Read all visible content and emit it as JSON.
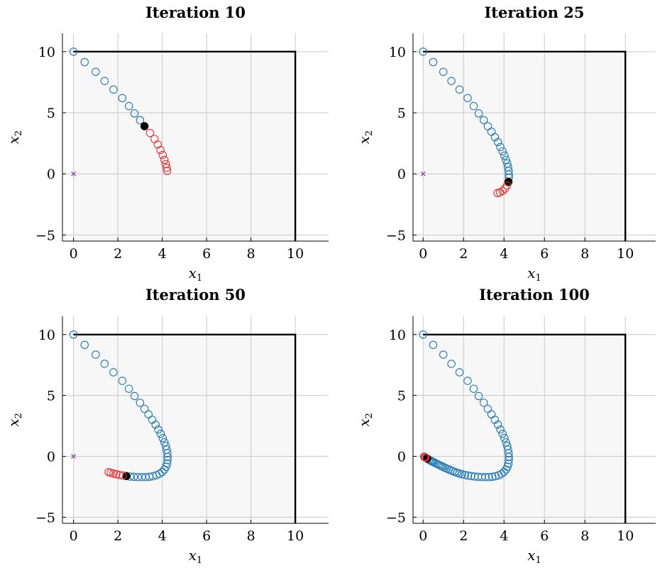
{
  "chart_data": [
    {
      "type": "scatter",
      "title": "Iteration 10",
      "xlabel": "x",
      "xlabel_sub": "1",
      "ylabel": "x",
      "ylabel_sub": "2",
      "xlim": [
        -0.5,
        11.5
      ],
      "ylim": [
        -5.5,
        11.5
      ],
      "xticks": [
        0,
        2,
        4,
        6,
        8,
        10
      ],
      "yticks": [
        -5,
        0,
        5,
        10
      ],
      "xtick_labels": [
        "0",
        "2",
        "4",
        "6",
        "8",
        "10"
      ],
      "ytick_labels": [
        "−5",
        "0",
        "5",
        "10"
      ],
      "grid": true,
      "box": {
        "x": [
          0,
          10
        ],
        "y": [
          -5.5,
          10
        ]
      },
      "origin_marker": [
        0,
        0
      ],
      "series": [
        {
          "role": "past",
          "color": "#1f77b4",
          "marker": "open-circle",
          "points": [
            [
              0,
              10
            ],
            [
              0.5,
              9.15
            ],
            [
              1,
              8.35
            ],
            [
              1.4,
              7.6
            ],
            [
              1.8,
              6.9
            ],
            [
              2.2,
              6.2
            ],
            [
              2.5,
              5.55
            ],
            [
              2.75,
              4.95
            ],
            [
              3,
              4.4
            ]
          ]
        },
        {
          "role": "current",
          "color": "#000000",
          "marker": "filled-circle",
          "points": [
            [
              3.2,
              3.9
            ]
          ]
        },
        {
          "role": "predicted",
          "color": "#e8302f",
          "marker": "open-circle",
          "points": [
            [
              3.45,
              3.35
            ],
            [
              3.65,
              2.85
            ],
            [
              3.8,
              2.4
            ],
            [
              3.92,
              1.95
            ],
            [
              4.02,
              1.55
            ],
            [
              4.1,
              1.15
            ],
            [
              4.16,
              0.8
            ],
            [
              4.2,
              0.5
            ],
            [
              4.22,
              0.25
            ]
          ]
        }
      ]
    },
    {
      "type": "scatter",
      "title": "Iteration 25",
      "xlabel": "x",
      "xlabel_sub": "1",
      "ylabel": "x",
      "ylabel_sub": "2",
      "xlim": [
        -0.5,
        11.5
      ],
      "ylim": [
        -5.5,
        11.5
      ],
      "xticks": [
        0,
        2,
        4,
        6,
        8,
        10
      ],
      "yticks": [
        -5,
        0,
        5,
        10
      ],
      "xtick_labels": [
        "0",
        "2",
        "4",
        "6",
        "8",
        "10"
      ],
      "ytick_labels": [
        "−5",
        "0",
        "5",
        "10"
      ],
      "grid": true,
      "box": {
        "x": [
          0,
          10
        ],
        "y": [
          -5.5,
          10
        ]
      },
      "origin_marker": [
        0,
        0
      ],
      "series": [
        {
          "role": "past",
          "color": "#1f77b4",
          "marker": "open-circle",
          "points": [
            [
              0,
              10
            ],
            [
              0.5,
              9.15
            ],
            [
              1,
              8.35
            ],
            [
              1.4,
              7.6
            ],
            [
              1.8,
              6.9
            ],
            [
              2.2,
              6.2
            ],
            [
              2.5,
              5.55
            ],
            [
              2.75,
              4.95
            ],
            [
              3,
              4.4
            ],
            [
              3.2,
              3.9
            ],
            [
              3.38,
              3.45
            ],
            [
              3.55,
              3.0
            ],
            [
              3.7,
              2.6
            ],
            [
              3.82,
              2.2
            ],
            [
              3.93,
              1.85
            ],
            [
              4.02,
              1.5
            ],
            [
              4.1,
              1.15
            ],
            [
              4.16,
              0.85
            ],
            [
              4.2,
              0.55
            ],
            [
              4.23,
              0.25
            ],
            [
              4.24,
              -0.05
            ],
            [
              4.24,
              -0.3
            ]
          ]
        },
        {
          "role": "current",
          "color": "#000000",
          "marker": "filled-circle",
          "points": [
            [
              4.22,
              -0.65
            ]
          ]
        },
        {
          "role": "predicted",
          "color": "#e8302f",
          "marker": "open-circle",
          "points": [
            [
              4.15,
              -0.95
            ],
            [
              4.05,
              -1.2
            ],
            [
              3.93,
              -1.4
            ],
            [
              3.8,
              -1.52
            ],
            [
              3.68,
              -1.57
            ]
          ]
        }
      ]
    },
    {
      "type": "scatter",
      "title": "Iteration 50",
      "xlabel": "x",
      "xlabel_sub": "1",
      "ylabel": "x",
      "ylabel_sub": "2",
      "xlim": [
        -0.5,
        11.5
      ],
      "ylim": [
        -5.5,
        11.5
      ],
      "xticks": [
        0,
        2,
        4,
        6,
        8,
        10
      ],
      "yticks": [
        -5,
        0,
        5,
        10
      ],
      "xtick_labels": [
        "0",
        "2",
        "4",
        "6",
        "8",
        "10"
      ],
      "ytick_labels": [
        "−5",
        "0",
        "5",
        "10"
      ],
      "grid": true,
      "box": {
        "x": [
          0,
          10
        ],
        "y": [
          -5.5,
          10
        ]
      },
      "origin_marker": [
        0,
        0
      ],
      "series": [
        {
          "role": "past",
          "color": "#1f77b4",
          "marker": "open-circle",
          "points": [
            [
              0,
              10
            ],
            [
              0.5,
              9.15
            ],
            [
              1,
              8.35
            ],
            [
              1.4,
              7.6
            ],
            [
              1.8,
              6.9
            ],
            [
              2.2,
              6.2
            ],
            [
              2.5,
              5.55
            ],
            [
              2.75,
              4.95
            ],
            [
              3,
              4.4
            ],
            [
              3.2,
              3.9
            ],
            [
              3.38,
              3.45
            ],
            [
              3.55,
              3.0
            ],
            [
              3.7,
              2.6
            ],
            [
              3.82,
              2.2
            ],
            [
              3.93,
              1.85
            ],
            [
              4.02,
              1.5
            ],
            [
              4.1,
              1.15
            ],
            [
              4.16,
              0.85
            ],
            [
              4.2,
              0.55
            ],
            [
              4.23,
              0.25
            ],
            [
              4.24,
              -0.05
            ],
            [
              4.24,
              -0.3
            ],
            [
              4.22,
              -0.6
            ],
            [
              4.17,
              -0.85
            ],
            [
              4.1,
              -1.08
            ],
            [
              4.0,
              -1.28
            ],
            [
              3.88,
              -1.43
            ],
            [
              3.74,
              -1.55
            ],
            [
              3.58,
              -1.63
            ],
            [
              3.42,
              -1.68
            ],
            [
              3.25,
              -1.7
            ],
            [
              3.08,
              -1.7
            ],
            [
              2.9,
              -1.7
            ],
            [
              2.72,
              -1.68
            ],
            [
              2.55,
              -1.66
            ]
          ]
        },
        {
          "role": "current",
          "color": "#000000",
          "marker": "filled-circle",
          "points": [
            [
              2.38,
              -1.62
            ]
          ]
        },
        {
          "role": "predicted",
          "color": "#e8302f",
          "marker": "open-circle",
          "points": [
            [
              2.22,
              -1.58
            ],
            [
              2.07,
              -1.53
            ],
            [
              1.93,
              -1.47
            ],
            [
              1.8,
              -1.41
            ],
            [
              1.68,
              -1.35
            ],
            [
              1.58,
              -1.3
            ]
          ]
        }
      ]
    },
    {
      "type": "scatter",
      "title": "Iteration 100",
      "xlabel": "x",
      "xlabel_sub": "1",
      "ylabel": "x",
      "ylabel_sub": "2",
      "xlim": [
        -0.5,
        11.5
      ],
      "ylim": [
        -5.5,
        11.5
      ],
      "xticks": [
        0,
        2,
        4,
        6,
        8,
        10
      ],
      "yticks": [
        -5,
        0,
        5,
        10
      ],
      "xtick_labels": [
        "0",
        "2",
        "4",
        "6",
        "8",
        "10"
      ],
      "ytick_labels": [
        "−5",
        "0",
        "5",
        "10"
      ],
      "grid": true,
      "box": {
        "x": [
          0,
          10
        ],
        "y": [
          -5.5,
          10
        ]
      },
      "origin_marker": [
        0,
        0
      ],
      "series": [
        {
          "role": "past",
          "color": "#1f77b4",
          "marker": "open-circle",
          "points": [
            [
              0,
              10
            ],
            [
              0.5,
              9.15
            ],
            [
              1,
              8.35
            ],
            [
              1.4,
              7.6
            ],
            [
              1.8,
              6.9
            ],
            [
              2.2,
              6.2
            ],
            [
              2.5,
              5.55
            ],
            [
              2.75,
              4.95
            ],
            [
              3,
              4.4
            ],
            [
              3.2,
              3.9
            ],
            [
              3.38,
              3.45
            ],
            [
              3.55,
              3.0
            ],
            [
              3.7,
              2.6
            ],
            [
              3.82,
              2.2
            ],
            [
              3.93,
              1.85
            ],
            [
              4.02,
              1.5
            ],
            [
              4.1,
              1.15
            ],
            [
              4.16,
              0.85
            ],
            [
              4.2,
              0.55
            ],
            [
              4.23,
              0.25
            ],
            [
              4.24,
              -0.05
            ],
            [
              4.24,
              -0.3
            ],
            [
              4.22,
              -0.6
            ],
            [
              4.17,
              -0.85
            ],
            [
              4.1,
              -1.08
            ],
            [
              4.0,
              -1.28
            ],
            [
              3.88,
              -1.43
            ],
            [
              3.74,
              -1.55
            ],
            [
              3.58,
              -1.63
            ],
            [
              3.42,
              -1.68
            ],
            [
              3.25,
              -1.7
            ],
            [
              3.08,
              -1.7
            ],
            [
              2.9,
              -1.7
            ],
            [
              2.72,
              -1.68
            ],
            [
              2.55,
              -1.66
            ],
            [
              2.38,
              -1.62
            ],
            [
              2.22,
              -1.58
            ],
            [
              2.07,
              -1.53
            ],
            [
              1.93,
              -1.47
            ],
            [
              1.8,
              -1.41
            ],
            [
              1.68,
              -1.35
            ],
            [
              1.57,
              -1.28
            ],
            [
              1.46,
              -1.21
            ],
            [
              1.36,
              -1.14
            ],
            [
              1.26,
              -1.07
            ],
            [
              1.16,
              -1.0
            ],
            [
              1.07,
              -0.93
            ],
            [
              0.98,
              -0.86
            ],
            [
              0.9,
              -0.79
            ],
            [
              0.82,
              -0.73
            ],
            [
              0.74,
              -0.66
            ],
            [
              0.66,
              -0.6
            ],
            [
              0.59,
              -0.54
            ],
            [
              0.52,
              -0.48
            ],
            [
              0.46,
              -0.43
            ],
            [
              0.4,
              -0.38
            ],
            [
              0.34,
              -0.33
            ],
            [
              0.28,
              -0.28
            ]
          ]
        },
        {
          "role": "current",
          "color": "#000000",
          "marker": "filled-circle",
          "points": [
            [
              0.2,
              -0.18
            ]
          ]
        },
        {
          "role": "predicted",
          "color": "#e8302f",
          "marker": "open-circle",
          "points": [
            [
              0.13,
              -0.11
            ],
            [
              0.08,
              -0.06
            ],
            [
              0.05,
              -0.03
            ]
          ]
        }
      ]
    }
  ]
}
